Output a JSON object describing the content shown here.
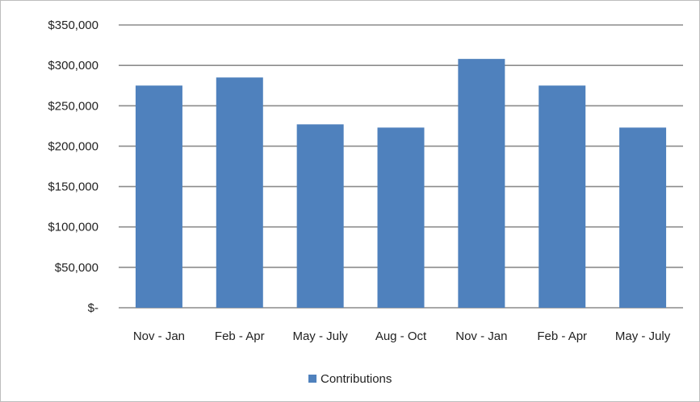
{
  "chart_data": {
    "type": "bar",
    "title": "",
    "xlabel": "",
    "ylabel": "",
    "categories": [
      "Nov - Jan",
      "Feb - Apr",
      "May - July",
      "Aug - Oct",
      "Nov - Jan",
      "Feb - Apr",
      "May - July"
    ],
    "series": [
      {
        "name": "Contributions",
        "values": [
          275000,
          285000,
          227000,
          223000,
          308000,
          275000,
          223000
        ]
      }
    ],
    "ylim": [
      0,
      350000
    ],
    "yticks": [
      0,
      50000,
      100000,
      150000,
      200000,
      250000,
      300000,
      350000
    ],
    "ytick_labels": [
      "$-",
      "$50,000",
      "$100,000",
      "$150,000",
      "$200,000",
      "$250,000",
      "$300,000",
      "$350,000"
    ],
    "grid": true,
    "legend_position": "bottom",
    "bar_color": "#4f81bd",
    "grid_color": "#8c8c8c"
  }
}
